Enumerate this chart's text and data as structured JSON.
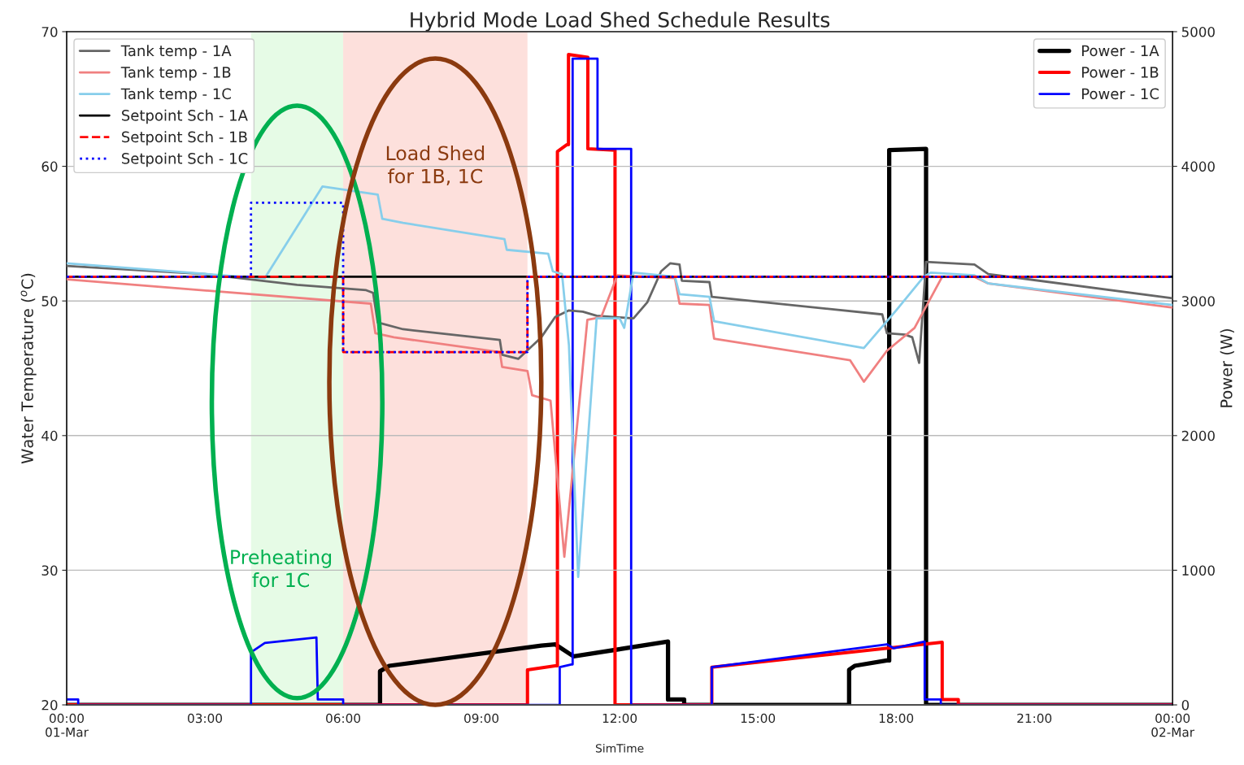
{
  "chart_data": {
    "type": "line",
    "title": "Hybrid Mode Load Shed Schedule Results",
    "xlabel": "SimTime",
    "ylabel": "Water Temperature ($^{o}$C)",
    "y2label": "Power (W)",
    "xlim": [
      0,
      24
    ],
    "xticks": [
      {
        "value": 0,
        "label": "00:00\n01-Mar"
      },
      {
        "value": 3,
        "label": "03:00"
      },
      {
        "value": 6,
        "label": "06:00"
      },
      {
        "value": 9,
        "label": "09:00"
      },
      {
        "value": 12,
        "label": "12:00"
      },
      {
        "value": 15,
        "label": "15:00"
      },
      {
        "value": 18,
        "label": "18:00"
      },
      {
        "value": 21,
        "label": "21:00"
      },
      {
        "value": 24,
        "label": "00:00\n02-Mar"
      }
    ],
    "ylim": [
      20,
      70
    ],
    "yticks": [
      20,
      30,
      40,
      50,
      60,
      70
    ],
    "y2lim": [
      0,
      5000
    ],
    "y2ticks": [
      0,
      1000,
      2000,
      3000,
      4000,
      5000
    ],
    "grid": "y",
    "legend": "top left",
    "marker": "none",
    "bands": [
      {
        "axis": "x",
        "from": 4,
        "to": 6,
        "label": "Preheating\nfor 1C",
        "color": "#e6fbe6"
      },
      {
        "axis": "x",
        "from": 6,
        "to": 10,
        "label": "Load Shed\nfor 1B, 1C",
        "color": "#fde0dc"
      }
    ],
    "series": [
      {
        "name": "Tank temp - 1A",
        "color": "#666666",
        "line_style": "solid",
        "x": [
          0,
          3,
          5,
          6.5,
          6.65,
          6.75,
          7.3,
          9.4,
          9.45,
          9.8,
          10.3,
          10.6,
          10.9,
          11.2,
          11.5,
          12.3,
          12.6,
          12.9,
          13.1,
          13.3,
          13.35,
          13.95,
          14.0,
          17.7,
          17.8,
          18.2,
          18.35,
          18.5,
          18.65,
          19.7,
          20.0,
          24
        ],
        "values": [
          52.6,
          52.0,
          51.2,
          50.8,
          50.6,
          48.4,
          47.9,
          47.1,
          46.0,
          45.7,
          47.3,
          48.8,
          49.3,
          49.2,
          48.9,
          48.7,
          49.9,
          52.2,
          52.8,
          52.7,
          51.5,
          51.4,
          50.3,
          49.0,
          47.6,
          47.5,
          47.3,
          45.4,
          52.9,
          52.7,
          52.0,
          50.2
        ]
      },
      {
        "name": "Tank temp - 1B",
        "color": "#f08080",
        "line_style": "solid",
        "x": [
          0,
          6.6,
          6.7,
          7.1,
          9.4,
          9.45,
          10.0,
          10.1,
          10.5,
          10.8,
          11.3,
          11.6,
          11.95,
          13.2,
          13.3,
          13.95,
          14.05,
          17.0,
          17.3,
          17.8,
          18.4,
          19.0,
          19.7,
          20.0,
          24
        ],
        "values": [
          51.6,
          49.8,
          47.6,
          47.3,
          46.2,
          45.1,
          44.8,
          43.0,
          42.6,
          31.0,
          48.6,
          48.8,
          51.9,
          51.7,
          49.8,
          49.7,
          47.2,
          45.6,
          44.0,
          46.3,
          48.0,
          51.8,
          51.8,
          51.3,
          49.5
        ]
      },
      {
        "name": "Tank temp - 1C",
        "color": "#87ceeb",
        "line_style": "solid",
        "x": [
          0,
          3.8,
          4.3,
          5.55,
          6.75,
          6.85,
          7.3,
          9.5,
          9.55,
          10.45,
          10.55,
          10.75,
          10.9,
          11.1,
          11.5,
          12.0,
          12.1,
          12.3,
          13.2,
          13.3,
          13.95,
          14.05,
          17.3,
          18.0,
          18.6,
          18.75,
          19.7,
          20.0,
          24
        ],
        "values": [
          52.8,
          51.8,
          51.7,
          58.5,
          57.9,
          56.1,
          55.8,
          54.6,
          53.8,
          53.5,
          52.2,
          52.0,
          46.7,
          29.5,
          48.7,
          48.7,
          48.0,
          52.1,
          51.8,
          50.5,
          50.3,
          48.5,
          46.5,
          49.3,
          51.8,
          52.1,
          51.9,
          51.3,
          49.7
        ]
      },
      {
        "name": "Setpoint Sch - 1A",
        "color": "#000000",
        "line_style": "solid",
        "x": [
          0,
          24
        ],
        "values": [
          51.8,
          51.8
        ]
      },
      {
        "name": "Setpoint Sch - 1B",
        "color": "#ff0000",
        "line_style": "dashed",
        "x": [
          0,
          6,
          6,
          10,
          10,
          24
        ],
        "values": [
          51.8,
          51.8,
          46.2,
          46.2,
          51.8,
          51.8
        ]
      },
      {
        "name": "Setpoint Sch - 1C",
        "color": "#0000ff",
        "line_style": "dotted",
        "x": [
          0,
          4,
          4,
          6,
          6,
          10,
          10,
          24
        ],
        "values": [
          51.8,
          51.8,
          57.3,
          57.3,
          46.2,
          46.2,
          51.8,
          51.8
        ]
      },
      {
        "name": "Power - 1A",
        "color": "#000000",
        "line_style": "solid",
        "axis": "y2",
        "x": [
          0,
          6.8,
          6.8,
          7.0,
          10.3,
          10.6,
          11.0,
          13.05,
          13.05,
          13.4,
          13.4,
          16.98,
          16.98,
          17.1,
          17.8,
          17.85,
          17.85,
          18.65,
          18.65,
          24
        ],
        "values": [
          0,
          0,
          250,
          290,
          440,
          450,
          360,
          470,
          40,
          40,
          0,
          0,
          260,
          290,
          330,
          330,
          4120,
          4130,
          0,
          0
        ]
      },
      {
        "name": "Power - 1B",
        "color": "#ff0000",
        "line_style": "solid",
        "axis": "y2",
        "x": [
          0,
          10.0,
          10.0,
          10.6,
          10.65,
          10.65,
          10.85,
          10.89,
          10.89,
          11.31,
          11.31,
          11.9,
          11.9,
          14.0,
          14.0,
          19.0,
          19.0,
          19.35,
          19.35,
          24
        ],
        "values": [
          0,
          0,
          260,
          290,
          290,
          4110,
          4160,
          4160,
          4830,
          4810,
          4130,
          4120,
          0,
          0,
          280,
          465,
          40,
          40,
          0,
          0
        ]
      },
      {
        "name": "Power - 1C",
        "color": "#0000ff",
        "line_style": "solid",
        "axis": "y2",
        "x": [
          0,
          0.25,
          0.25,
          4.0,
          4.0,
          4.3,
          5.42,
          5.45,
          6.0,
          6.0,
          10.7,
          10.7,
          10.95,
          10.98,
          10.98,
          11.52,
          11.52,
          12.25,
          12.25,
          14.0,
          14.0,
          17.8,
          17.95,
          18.62,
          18.62,
          18.97,
          18.97,
          24
        ],
        "values": [
          40,
          40,
          0,
          0,
          390,
          460,
          500,
          40,
          40,
          0,
          0,
          280,
          300,
          300,
          4800,
          4800,
          4130,
          4130,
          0,
          0,
          280,
          450,
          420,
          470,
          40,
          40,
          0,
          0
        ]
      }
    ]
  }
}
